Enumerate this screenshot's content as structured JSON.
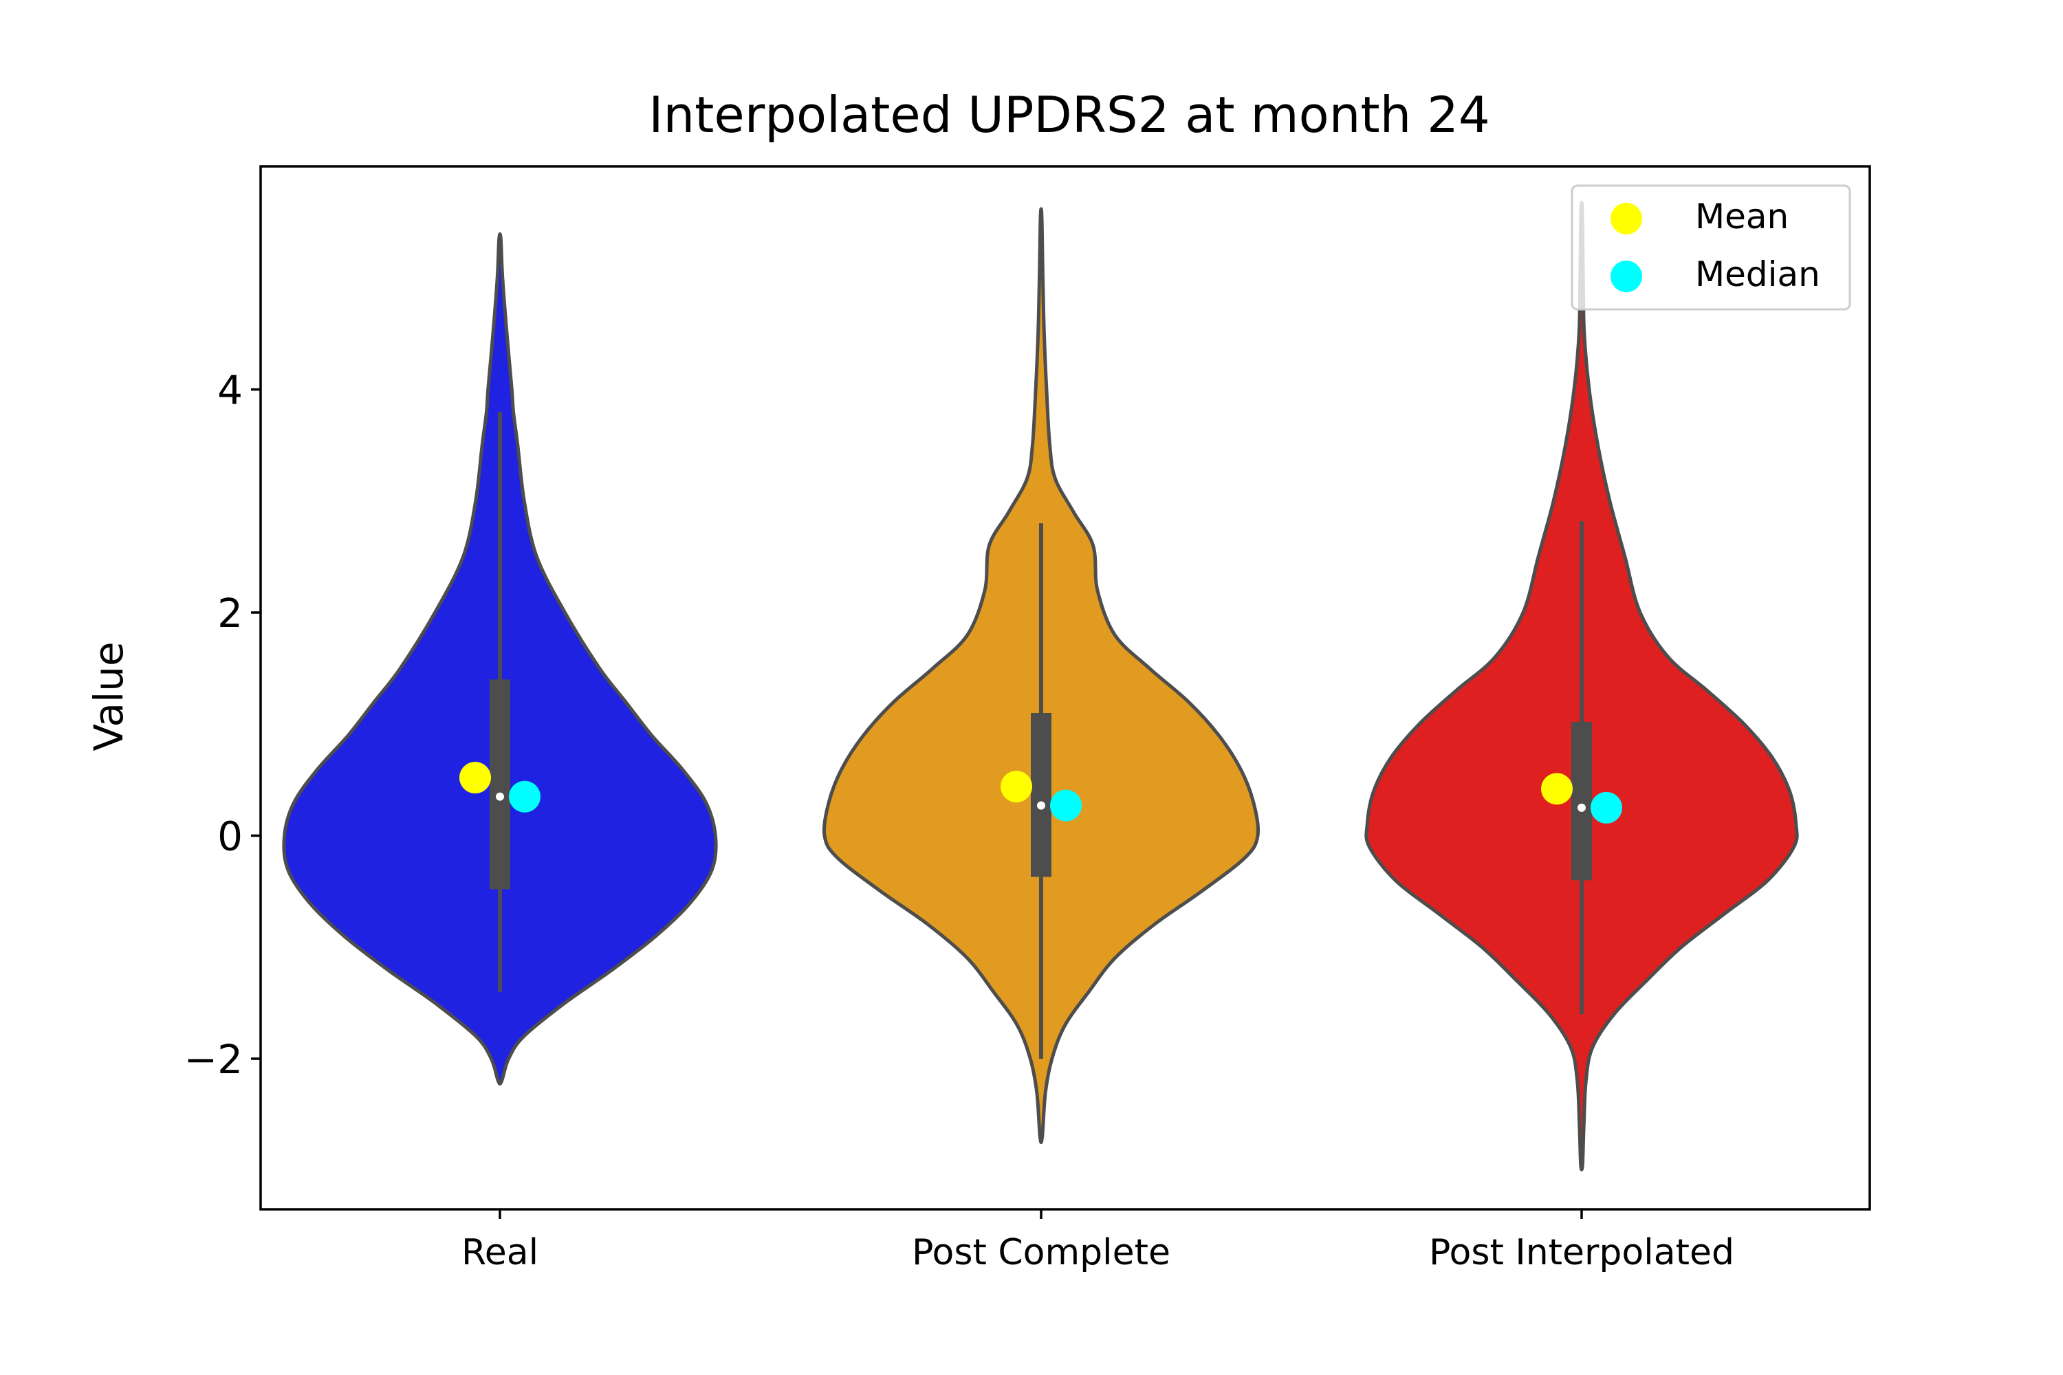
{
  "chart_data": {
    "type": "violin",
    "title": "Interpolated UPDRS2 at month 24",
    "xlabel": "",
    "ylabel": "Value",
    "ylim": [
      -3.35,
      6.0
    ],
    "yticks": [
      -2,
      0,
      2,
      4
    ],
    "ytick_labels": [
      "−2",
      "0",
      "2",
      "4"
    ],
    "categories": [
      "Real",
      "Post Complete",
      "Post Interpolated"
    ],
    "grid": false,
    "legend": {
      "position": "top-right",
      "entries": [
        {
          "label": "Mean",
          "color": "#ffff00"
        },
        {
          "label": "Median",
          "color": "#00ffff"
        }
      ]
    },
    "series": [
      {
        "category": "Real",
        "color": "#1f22e0",
        "mean": 0.52,
        "median": 0.35,
        "q1": -0.48,
        "q3": 1.4,
        "whisker_low": -1.4,
        "whisker_high": 3.8,
        "min": -2.2,
        "max": 5.35,
        "profile": [
          [
            5.35,
            0.004
          ],
          [
            5.0,
            0.012
          ],
          [
            4.5,
            0.032
          ],
          [
            4.0,
            0.055
          ],
          [
            3.8,
            0.062
          ],
          [
            3.5,
            0.082
          ],
          [
            3.0,
            0.112
          ],
          [
            2.5,
            0.17
          ],
          [
            2.0,
            0.3
          ],
          [
            1.5,
            0.46
          ],
          [
            1.2,
            0.58
          ],
          [
            0.9,
            0.7
          ],
          [
            0.6,
            0.84
          ],
          [
            0.3,
            0.95
          ],
          [
            0.0,
            0.995
          ],
          [
            -0.3,
            0.98
          ],
          [
            -0.6,
            0.88
          ],
          [
            -0.9,
            0.72
          ],
          [
            -1.2,
            0.52
          ],
          [
            -1.5,
            0.3
          ],
          [
            -1.8,
            0.11
          ],
          [
            -2.0,
            0.04
          ],
          [
            -2.2,
            0.008
          ]
        ]
      },
      {
        "category": "Post Complete",
        "color": "#e09b20",
        "mean": 0.44,
        "median": 0.27,
        "q1": -0.37,
        "q3": 1.1,
        "whisker_low": -2.0,
        "whisker_high": 2.8,
        "min": -2.7,
        "max": 5.55,
        "profile": [
          [
            5.55,
            0.003
          ],
          [
            5.0,
            0.008
          ],
          [
            4.5,
            0.014
          ],
          [
            4.0,
            0.025
          ],
          [
            3.5,
            0.04
          ],
          [
            3.2,
            0.065
          ],
          [
            2.9,
            0.15
          ],
          [
            2.6,
            0.24
          ],
          [
            2.2,
            0.26
          ],
          [
            1.8,
            0.34
          ],
          [
            1.5,
            0.5
          ],
          [
            1.2,
            0.68
          ],
          [
            0.9,
            0.82
          ],
          [
            0.6,
            0.92
          ],
          [
            0.3,
            0.98
          ],
          [
            0.0,
            1.0
          ],
          [
            -0.2,
            0.94
          ],
          [
            -0.5,
            0.74
          ],
          [
            -0.8,
            0.52
          ],
          [
            -1.1,
            0.34
          ],
          [
            -1.4,
            0.22
          ],
          [
            -1.7,
            0.11
          ],
          [
            -2.0,
            0.05
          ],
          [
            -2.3,
            0.02
          ],
          [
            -2.7,
            0.005
          ]
        ]
      },
      {
        "category": "Post Interpolated",
        "color": "#de2020",
        "mean": 0.42,
        "median": 0.25,
        "q1": -0.4,
        "q3": 1.02,
        "whisker_low": -1.6,
        "whisker_high": 2.82,
        "min": -2.95,
        "max": 5.6,
        "profile": [
          [
            5.6,
            0.003
          ],
          [
            5.0,
            0.007
          ],
          [
            4.5,
            0.012
          ],
          [
            4.0,
            0.035
          ],
          [
            3.5,
            0.075
          ],
          [
            3.0,
            0.13
          ],
          [
            2.5,
            0.2
          ],
          [
            2.0,
            0.27
          ],
          [
            1.6,
            0.4
          ],
          [
            1.3,
            0.58
          ],
          [
            1.0,
            0.75
          ],
          [
            0.7,
            0.88
          ],
          [
            0.4,
            0.96
          ],
          [
            0.1,
            0.99
          ],
          [
            -0.1,
            0.98
          ],
          [
            -0.4,
            0.86
          ],
          [
            -0.7,
            0.66
          ],
          [
            -1.0,
            0.46
          ],
          [
            -1.3,
            0.3
          ],
          [
            -1.6,
            0.15
          ],
          [
            -1.9,
            0.05
          ],
          [
            -2.2,
            0.02
          ],
          [
            -2.6,
            0.01
          ],
          [
            -2.95,
            0.004
          ]
        ]
      }
    ]
  }
}
